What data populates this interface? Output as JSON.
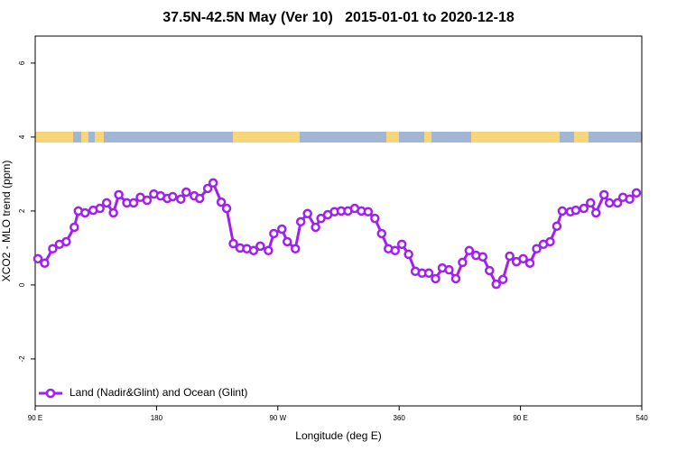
{
  "chart_data": {
    "type": "line",
    "title": "37.5N-42.5N May (Ver 10)   2015-01-01 to 2020-12-18",
    "x_label": "Longitude (deg E)",
    "y_label": "XCO2 - MLO trend (ppm)",
    "xlim": [
      90,
      540
    ],
    "ylim": [
      -3.27,
      6.73
    ],
    "xticks": [
      {
        "value": 90,
        "label": "90 E"
      },
      180,
      {
        "value": 270,
        "label": "90 W"
      },
      360,
      {
        "value": 450,
        "label": "90 E"
      },
      540
    ],
    "yticks": [
      -2,
      0,
      2,
      4,
      6
    ],
    "legend": "bottom-left",
    "x": [
      92,
      97,
      103,
      108,
      113,
      119,
      122,
      127,
      133,
      138,
      143,
      148,
      152,
      158,
      163,
      168,
      173,
      178,
      183,
      188,
      192,
      198,
      202,
      208,
      212,
      218,
      222,
      228,
      232,
      237,
      242,
      247,
      252,
      257,
      263,
      267,
      273,
      277,
      283,
      287,
      292,
      298,
      302,
      307,
      312,
      317,
      322,
      327,
      332,
      337,
      342,
      347,
      352,
      357,
      362,
      367,
      372,
      377,
      382,
      387,
      392,
      397,
      402,
      407,
      412,
      417,
      422,
      427,
      432,
      437,
      442,
      447,
      452,
      457,
      462,
      467,
      472,
      477,
      481,
      487,
      491,
      497,
      502,
      506,
      512,
      516,
      522,
      526,
      531,
      536
    ],
    "series": [
      {
        "name": "Land (Nadir&Glint) and Ocean (Glint)",
        "color": "#a020f0",
        "values": [
          0.71,
          0.59,
          0.98,
          1.1,
          1.17,
          1.56,
          2.0,
          1.95,
          2.02,
          2.07,
          2.22,
          1.95,
          2.44,
          2.22,
          2.22,
          2.37,
          2.29,
          2.46,
          2.41,
          2.34,
          2.39,
          2.32,
          2.51,
          2.41,
          2.34,
          2.61,
          2.76,
          2.24,
          2.07,
          1.12,
          1.0,
          0.98,
          0.93,
          1.05,
          0.93,
          1.39,
          1.51,
          1.17,
          0.98,
          1.71,
          1.93,
          1.56,
          1.8,
          1.9,
          1.98,
          2.0,
          2.0,
          2.07,
          2.0,
          1.98,
          1.8,
          1.39,
          0.98,
          0.93,
          1.1,
          0.83,
          0.37,
          0.32,
          0.32,
          0.17,
          0.46,
          0.41,
          0.17,
          0.61,
          0.93,
          0.8,
          0.76,
          0.39,
          0.02,
          0.15,
          0.78,
          0.63,
          0.71,
          0.59,
          0.98,
          1.1,
          1.17,
          1.59,
          2.0,
          1.98,
          2.02,
          2.07,
          2.22,
          1.95,
          2.44,
          2.22,
          2.22,
          2.37,
          2.32,
          2.49
        ]
      }
    ]
  }
}
